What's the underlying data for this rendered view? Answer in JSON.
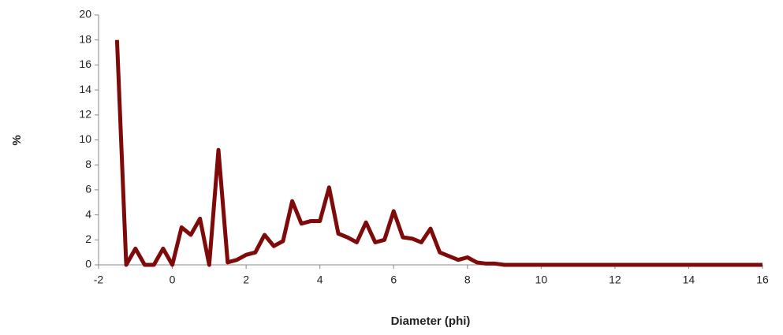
{
  "chart_data": {
    "type": "line",
    "x_label": "Diameter (phi)",
    "y_label": "%",
    "x": [
      -1.5,
      -1.25,
      -1.0,
      -0.75,
      -0.5,
      -0.25,
      0.0,
      0.25,
      0.5,
      0.75,
      1.0,
      1.25,
      1.5,
      1.75,
      2.0,
      2.25,
      2.5,
      2.75,
      3.0,
      3.25,
      3.5,
      3.75,
      4.0,
      4.25,
      4.5,
      4.75,
      5.0,
      5.25,
      5.5,
      5.75,
      6.0,
      6.25,
      6.5,
      6.75,
      7.0,
      7.25,
      7.5,
      7.75,
      8.0,
      8.25,
      8.5,
      8.75,
      9.0,
      16.0
    ],
    "series": [
      {
        "color": "#7f0a0a",
        "values": [
          18,
          0,
          1.3,
          0,
          0,
          1.3,
          0,
          3.0,
          2.4,
          3.7,
          0,
          9.2,
          0.2,
          0.4,
          0.8,
          1.0,
          2.4,
          1.5,
          1.9,
          5.1,
          3.3,
          3.5,
          3.5,
          6.2,
          2.5,
          2.2,
          1.8,
          3.4,
          1.8,
          2.0,
          4.3,
          2.2,
          2.1,
          1.8,
          2.9,
          1.0,
          0.7,
          0.4,
          0.6,
          0.2,
          0.1,
          0.1,
          0,
          0
        ]
      }
    ],
    "xlim": [
      -2,
      16
    ],
    "xticks": [
      -2,
      0,
      2,
      4,
      6,
      8,
      10,
      12,
      14,
      16
    ],
    "ylim": [
      0,
      20
    ],
    "yticks": [
      0,
      2,
      4,
      6,
      8,
      10,
      12,
      14,
      16,
      18,
      20
    ],
    "grid": false
  }
}
